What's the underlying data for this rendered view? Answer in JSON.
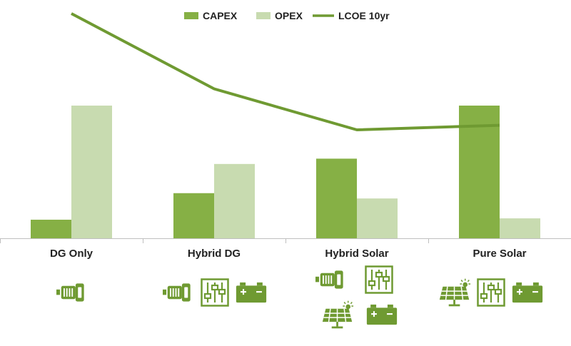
{
  "chart_data": {
    "type": "bar",
    "categories": [
      "DG Only",
      "Hybrid DG",
      "Hybrid Solar",
      "Pure Solar"
    ],
    "series": [
      {
        "name": "CAPEX",
        "type": "bar",
        "values": [
          14,
          34,
          60,
          100
        ]
      },
      {
        "name": "OPEX",
        "type": "bar",
        "values": [
          100,
          56,
          30,
          15
        ]
      },
      {
        "name": "LCOE 10yr",
        "type": "line",
        "values": [
          100,
          67,
          49,
          51
        ]
      }
    ],
    "ylim": [
      0,
      100
    ],
    "grid": false,
    "legend": "top-center",
    "colors": {
      "CAPEX": "#86b045",
      "OPEX": "#c8dbb0",
      "LCOE 10yr": "#6f9a32",
      "icon": "#6f9a32",
      "axis": "#bfbfbf"
    },
    "category_icons": [
      [
        "generator-icon"
      ],
      [
        "generator-icon",
        "controller-icon",
        "battery-icon"
      ],
      [
        "generator-icon",
        "controller-icon",
        "solar-panel-icon",
        "battery-icon"
      ],
      [
        "solar-panel-icon",
        "controller-icon",
        "battery-icon"
      ]
    ]
  }
}
